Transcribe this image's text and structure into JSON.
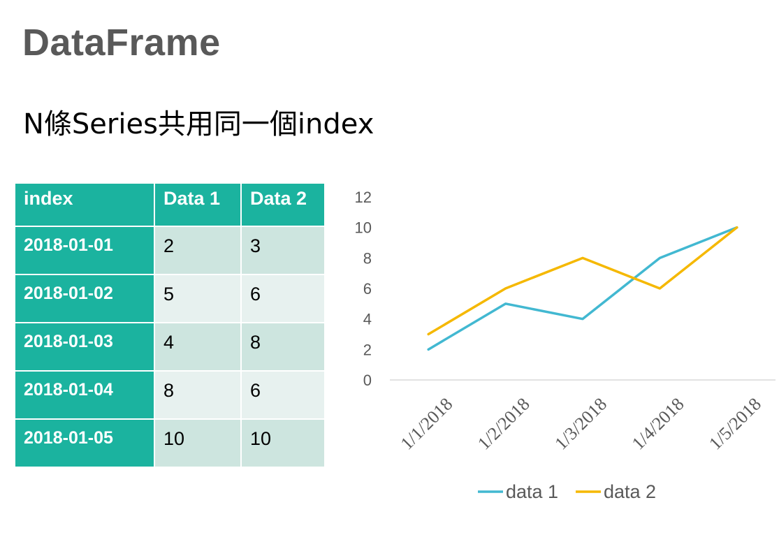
{
  "slide": {
    "title": "DataFrame",
    "subtitle": "N條Series共用同一個index"
  },
  "table": {
    "headers": [
      "index",
      "Data 1",
      "Data 2"
    ],
    "rows": [
      {
        "index": "2018-01-01",
        "data1": "2",
        "data2": "3"
      },
      {
        "index": "2018-01-02",
        "data1": "5",
        "data2": "6"
      },
      {
        "index": "2018-01-03",
        "data1": "4",
        "data2": "8"
      },
      {
        "index": "2018-01-04",
        "data1": "8",
        "data2": "6"
      },
      {
        "index": "2018-01-05",
        "data1": "10",
        "data2": "10"
      }
    ]
  },
  "chart_data": {
    "type": "line",
    "categories": [
      "1/1/2018",
      "1/2/2018",
      "1/3/2018",
      "1/4/2018",
      "1/5/2018"
    ],
    "series": [
      {
        "name": "data 1",
        "values": [
          2,
          5,
          4,
          8,
          10
        ],
        "color": "#42b8d1"
      },
      {
        "name": "data 2",
        "values": [
          3,
          6,
          8,
          6,
          10
        ],
        "color": "#f5b800"
      }
    ],
    "ylim": [
      0,
      12
    ],
    "yticks": [
      "0",
      "2",
      "4",
      "6",
      "8",
      "10",
      "12"
    ],
    "grid": false,
    "legend": "bottom",
    "axis_color": "#d9d9d9",
    "tick_color": "#595959"
  }
}
